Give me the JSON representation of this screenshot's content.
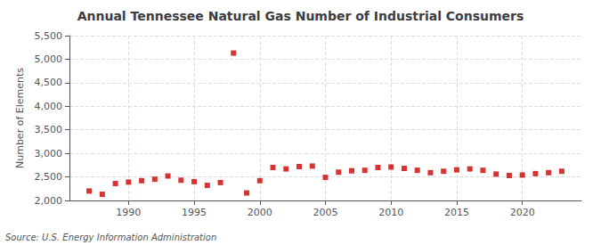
{
  "chart_data": {
    "type": "scatter",
    "title": "Annual Tennessee Natural Gas Number of Industrial Consumers",
    "y_label": "Number of Elements",
    "annotations": [
      "Source: U.S. Energy Information Administration"
    ],
    "x": [
      1987,
      1988,
      1989,
      1990,
      1991,
      1992,
      1993,
      1994,
      1995,
      1996,
      1997,
      1998,
      1999,
      2000,
      2001,
      2002,
      2003,
      2004,
      2005,
      2006,
      2007,
      2008,
      2009,
      2010,
      2011,
      2012,
      2013,
      2014,
      2015,
      2016,
      2017,
      2018,
      2019,
      2020,
      2021,
      2022,
      2023
    ],
    "values": [
      2200,
      2130,
      2360,
      2390,
      2420,
      2450,
      2520,
      2430,
      2400,
      2320,
      2380,
      5130,
      2160,
      2420,
      2700,
      2670,
      2720,
      2730,
      2490,
      2600,
      2630,
      2640,
      2700,
      2710,
      2680,
      2640,
      2590,
      2620,
      2650,
      2670,
      2640,
      2560,
      2530,
      2540,
      2570,
      2590,
      2620
    ],
    "color": "#cc0000",
    "marker": "square",
    "xlim": [
      1985.5,
      2024.5
    ],
    "xticks": [
      1990,
      1995,
      2000,
      2005,
      2010,
      2015,
      2020
    ],
    "ylim": [
      2000,
      5500
    ],
    "yticks": [
      {
        "value": 2000,
        "label": "2,000"
      },
      {
        "value": 2500,
        "label": "2,500"
      },
      {
        "value": 3000,
        "label": "3,000"
      },
      {
        "value": 3500,
        "label": "3,500"
      },
      {
        "value": 4000,
        "label": "4,000"
      },
      {
        "value": 4500,
        "label": "4,500"
      },
      {
        "value": 5000,
        "label": "5,000"
      },
      {
        "value": 5500,
        "label": "5,500"
      }
    ],
    "grid": true
  }
}
